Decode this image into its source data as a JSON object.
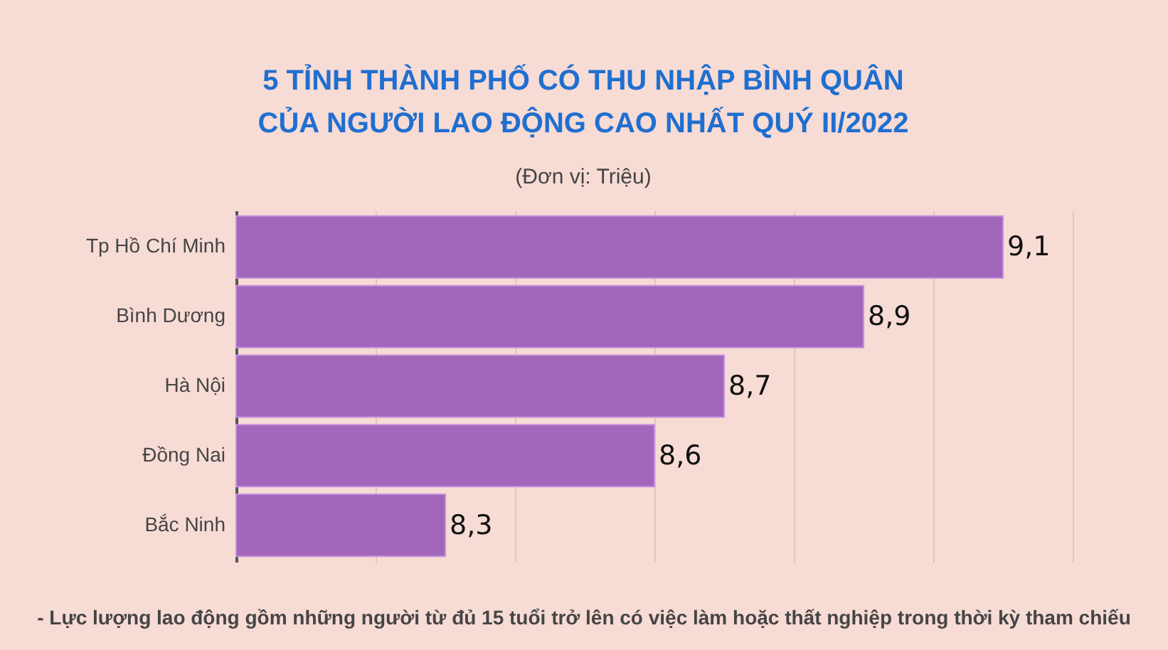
{
  "chart_data": {
    "type": "bar",
    "orientation": "horizontal",
    "title": "5 TỈNH THÀNH PHỐ CÓ THU NHẬP BÌNH QUÂN\nCỦA NGƯỜI LAO ĐỘNG CAO NHẤT QUÝ II/2022",
    "subtitle": "(Đơn vị: Triệu)",
    "annotations": [
      "- Lực lượng lao động gồm những người từ đủ 15 tuổi trở lên có việc làm hoặc thất nghiệp trong thời kỳ tham chiếu"
    ],
    "categories": [
      "Tp Hồ Chí Minh",
      "Bình Dương",
      "Hà Nội",
      "Đồng Nai",
      "Bắc Ninh"
    ],
    "values": [
      9.1,
      8.9,
      8.7,
      8.6,
      8.3
    ],
    "value_labels": [
      "9,1",
      "8,9",
      "8,7",
      "8,6",
      "8,3"
    ],
    "color": "#a266bb",
    "xlim": [
      8,
      9.2
    ],
    "xticks": [
      {
        "value": 8,
        "label": null
      },
      {
        "value": 8.2,
        "label": null
      },
      {
        "value": 8.4,
        "label": null
      },
      {
        "value": 8.6,
        "label": null
      },
      {
        "value": 8.8,
        "label": null
      },
      {
        "value": 9,
        "label": null
      },
      {
        "value": 9.2,
        "label": null
      }
    ],
    "grid": "x",
    "tick_labels": "y"
  }
}
